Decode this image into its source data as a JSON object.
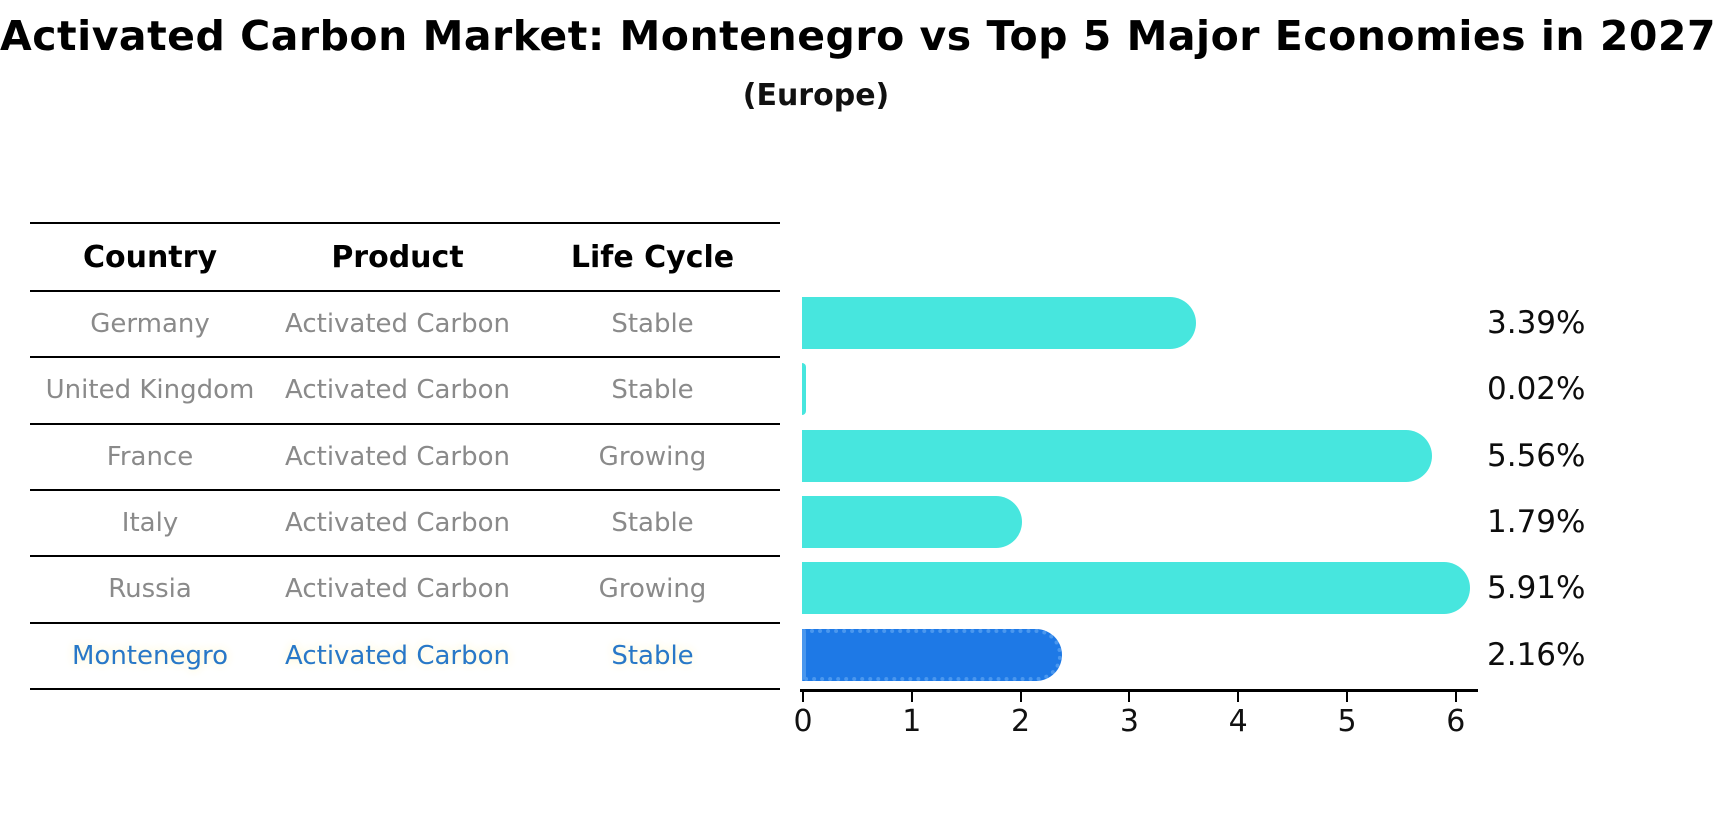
{
  "header": {
    "title": "Activated Carbon Market: Montenegro vs Top 5 Major Economies in 2027",
    "subtitle": "(Europe)"
  },
  "table": {
    "columns": [
      "Country",
      "Product",
      "Life Cycle"
    ],
    "rows": [
      {
        "country": "Germany",
        "product": "Activated Carbon",
        "life_cycle": "Stable"
      },
      {
        "country": "United Kingdom",
        "product": "Activated Carbon",
        "life_cycle": "Stable"
      },
      {
        "country": "France",
        "product": "Activated Carbon",
        "life_cycle": "Growing"
      },
      {
        "country": "Italy",
        "product": "Activated Carbon",
        "life_cycle": "Stable"
      },
      {
        "country": "Russia",
        "product": "Activated Carbon",
        "life_cycle": "Growing"
      },
      {
        "country": "Montenegro",
        "product": "Activated Carbon",
        "life_cycle": "Stable"
      }
    ]
  },
  "chart_data": {
    "type": "bar",
    "orientation": "horizontal",
    "title": "Activated Carbon Market: Montenegro vs Top 5 Major Economies in 2027",
    "subtitle": "(Europe)",
    "categories": [
      "Germany",
      "United Kingdom",
      "France",
      "Italy",
      "Russia",
      "Montenegro"
    ],
    "values": [
      3.39,
      0.02,
      5.56,
      1.79,
      5.91,
      2.16
    ],
    "value_labels": [
      "3.39%",
      "0.02%",
      "5.56%",
      "1.79%",
      "5.91%",
      "2.16%"
    ],
    "unit": "%",
    "xlim": [
      0,
      6
    ],
    "xticks": [
      "0",
      "1",
      "2",
      "3",
      "4",
      "5",
      "6"
    ],
    "grid": false,
    "legend": false,
    "bar_color": "#47e6de",
    "highlight_color": "#1e79e6",
    "highlight_index": 5,
    "highlight_category": "Montenegro"
  },
  "colors": {
    "row_text": "#8a8a8a",
    "highlight_text": "#2878c8",
    "axis": "#000000",
    "value_text": "#0d0d0d"
  }
}
